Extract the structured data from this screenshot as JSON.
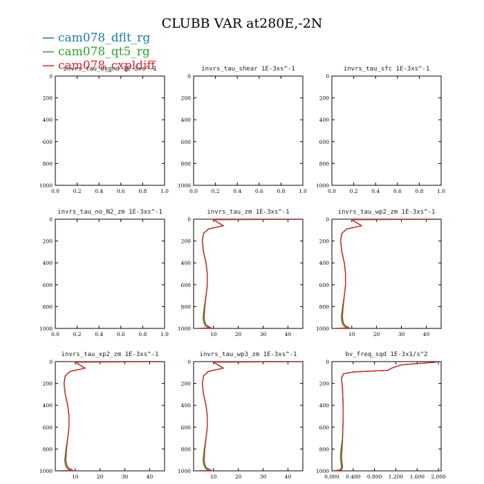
{
  "title": "CLUBB VAR at280E,-2N",
  "legend": [
    {
      "name": "cam078_dflt_rg",
      "color": "#1f77b4"
    },
    {
      "name": "cam078_qt5_rg",
      "color": "#2ca02c"
    },
    {
      "name": "cam078_cxpldiff",
      "color": "#d62728"
    }
  ],
  "chart_data": [
    {
      "type": "line",
      "title": "invrs_tau_bkgnd  1E-3xs^-1",
      "xlim": [
        0,
        1
      ],
      "ylim": [
        1000,
        0
      ],
      "xticks": [
        "0.0",
        "0.2",
        "0.4",
        "0.6",
        "0.8",
        "1.0"
      ],
      "yticks": [
        "0",
        "200",
        "400",
        "600",
        "800",
        "1000"
      ],
      "series": []
    },
    {
      "type": "line",
      "title": "invrs_tau_shear  1E-3xs^-1",
      "xlim": [
        0,
        1
      ],
      "ylim": [
        1000,
        0
      ],
      "xticks": [
        "0.0",
        "0.2",
        "0.4",
        "0.6",
        "0.8",
        "1.0"
      ],
      "yticks": [
        "0",
        "200",
        "400",
        "600",
        "800",
        "1000"
      ],
      "series": []
    },
    {
      "type": "line",
      "title": "invrs_tau_sfc  1E-3xs^-1",
      "xlim": [
        0,
        1
      ],
      "ylim": [
        1000,
        0
      ],
      "xticks": [
        "0.0",
        "0.2",
        "0.4",
        "0.6",
        "0.8",
        "1.0"
      ],
      "yticks": [
        "0",
        "200",
        "400",
        "600",
        "800",
        "1000"
      ],
      "series": []
    },
    {
      "type": "line",
      "title": "invrs_tau_no_N2_zm  1E-3xs^-1",
      "xlim": [
        0,
        1
      ],
      "ylim": [
        1000,
        0
      ],
      "xticks": [
        "0.0",
        "0.2",
        "0.4",
        "0.6",
        "0.8",
        "1.0"
      ],
      "yticks": [
        "0",
        "200",
        "400",
        "600",
        "800",
        "1000"
      ],
      "series": []
    },
    {
      "type": "line",
      "title": "invrs_tau_zm  1E-3xs^-1",
      "xlim": [
        2,
        46
      ],
      "ylim": [
        1000,
        0
      ],
      "xticks": [
        "10",
        "20",
        "30",
        "40"
      ],
      "yticks": [
        "0",
        "200",
        "400",
        "600",
        "800",
        "1000"
      ],
      "series": [
        {
          "x": [
            45,
            15,
            10,
            14,
            8,
            6,
            5.5,
            6,
            7,
            7.5,
            7.5,
            7,
            6.5,
            6.2,
            6.5,
            7,
            9,
            4
          ],
          "y": [
            0,
            3,
            5,
            60,
            90,
            130,
            200,
            300,
            400,
            500,
            600,
            700,
            800,
            900,
            940,
            970,
            995,
            1000
          ]
        },
        {
          "x": [
            45,
            15,
            10,
            14,
            8,
            6,
            5.5,
            6,
            7,
            7.5,
            7.5,
            7,
            6.3,
            5.8,
            6,
            6.5,
            8,
            4
          ],
          "y": [
            0,
            3,
            5,
            60,
            90,
            130,
            200,
            300,
            400,
            500,
            600,
            700,
            800,
            900,
            940,
            970,
            995,
            1000
          ]
        },
        {
          "x": [
            45,
            15,
            10,
            14,
            8,
            6,
            5.5,
            6,
            7,
            7.5,
            7.5,
            7,
            6.5,
            6.2,
            6.5,
            7,
            9,
            4
          ],
          "y": [
            0,
            3,
            5,
            60,
            90,
            130,
            200,
            300,
            400,
            500,
            600,
            700,
            800,
            900,
            940,
            970,
            995,
            1000
          ]
        }
      ]
    },
    {
      "type": "line",
      "title": "invrs_tau_wp2_zm  1E-3xs^-1",
      "xlim": [
        2,
        46
      ],
      "ylim": [
        1000,
        0
      ],
      "xticks": [
        "10",
        "20",
        "30",
        "40"
      ],
      "yticks": [
        "0",
        "200",
        "400",
        "600",
        "800",
        "1000"
      ],
      "series": [
        {
          "x": [
            45,
            15,
            10,
            14,
            8,
            6,
            5.5,
            6,
            7,
            7.5,
            7.5,
            7,
            6.5,
            6.2,
            6.5,
            7,
            9,
            4
          ],
          "y": [
            0,
            3,
            5,
            60,
            90,
            130,
            200,
            300,
            400,
            500,
            600,
            700,
            800,
            900,
            940,
            970,
            995,
            1000
          ]
        },
        {
          "x": [
            45,
            15,
            10,
            14,
            8,
            6,
            5.5,
            6,
            7,
            7.5,
            7.5,
            7,
            6.3,
            5.8,
            6,
            6.5,
            8,
            4
          ],
          "y": [
            0,
            3,
            5,
            60,
            90,
            130,
            200,
            300,
            400,
            500,
            600,
            700,
            800,
            900,
            940,
            970,
            995,
            1000
          ]
        },
        {
          "x": [
            45,
            15,
            10,
            14,
            8,
            6,
            5.5,
            6,
            7,
            7.5,
            7.5,
            7,
            6.5,
            6.2,
            6.5,
            7,
            9,
            4
          ],
          "y": [
            0,
            3,
            5,
            60,
            90,
            130,
            200,
            300,
            400,
            500,
            600,
            700,
            800,
            900,
            940,
            970,
            995,
            1000
          ]
        }
      ]
    },
    {
      "type": "line",
      "title": "invrs_tau_xp2_zm  1E-3xs^-1",
      "xlim": [
        2,
        46
      ],
      "ylim": [
        1000,
        0
      ],
      "xticks": [
        "10",
        "20",
        "30",
        "40"
      ],
      "yticks": [
        "0",
        "200",
        "400",
        "600",
        "800",
        "1000"
      ],
      "series": [
        {
          "x": [
            45,
            15,
            10,
            14,
            8,
            6,
            5.5,
            6,
            7,
            7.5,
            7.5,
            7,
            6.5,
            6.2,
            6.5,
            7,
            9,
            4
          ],
          "y": [
            0,
            3,
            5,
            60,
            90,
            130,
            200,
            300,
            400,
            500,
            600,
            700,
            800,
            900,
            940,
            970,
            995,
            1000
          ]
        },
        {
          "x": [
            45,
            15,
            10,
            14,
            8,
            6,
            5.5,
            6,
            7,
            7.5,
            7.5,
            7,
            6.3,
            5.8,
            6,
            6.5,
            8,
            4
          ],
          "y": [
            0,
            3,
            5,
            60,
            90,
            130,
            200,
            300,
            400,
            500,
            600,
            700,
            800,
            900,
            940,
            970,
            995,
            1000
          ]
        },
        {
          "x": [
            45,
            15,
            10,
            14,
            8,
            6,
            5.5,
            6,
            7,
            7.5,
            7.5,
            7,
            6.5,
            6.2,
            6.5,
            7,
            9,
            4
          ],
          "y": [
            0,
            3,
            5,
            60,
            90,
            130,
            200,
            300,
            400,
            500,
            600,
            700,
            800,
            900,
            940,
            970,
            995,
            1000
          ]
        }
      ]
    },
    {
      "type": "line",
      "title": "invrs_tau_wp3_zm  1E-3xs^-1",
      "xlim": [
        2,
        46
      ],
      "ylim": [
        1000,
        0
      ],
      "xticks": [
        "10",
        "20",
        "30",
        "40"
      ],
      "yticks": [
        "0",
        "200",
        "400",
        "600",
        "800",
        "1000"
      ],
      "series": [
        {
          "x": [
            45,
            15,
            10,
            14,
            8,
            6,
            5.5,
            6,
            7,
            7.5,
            7.5,
            7,
            6.5,
            6.2,
            6.5,
            7,
            9,
            4
          ],
          "y": [
            0,
            3,
            5,
            60,
            90,
            130,
            200,
            300,
            400,
            500,
            600,
            700,
            800,
            900,
            940,
            970,
            995,
            1000
          ]
        },
        {
          "x": [
            45,
            15,
            10,
            14,
            8,
            6,
            5.5,
            6,
            7,
            7.5,
            7.5,
            7,
            6.3,
            5.8,
            6,
            6.5,
            8,
            4
          ],
          "y": [
            0,
            3,
            5,
            60,
            90,
            130,
            200,
            300,
            400,
            500,
            600,
            700,
            800,
            900,
            940,
            970,
            995,
            1000
          ]
        },
        {
          "x": [
            45,
            15,
            10,
            14,
            8,
            6,
            5.5,
            6,
            7,
            7.5,
            7.5,
            7,
            6.5,
            6.2,
            6.5,
            7,
            9,
            4
          ],
          "y": [
            0,
            3,
            5,
            60,
            90,
            130,
            200,
            300,
            400,
            500,
            600,
            700,
            800,
            900,
            940,
            970,
            995,
            1000
          ]
        }
      ]
    },
    {
      "type": "line",
      "title": "bv_freq_sqd  1E-3x1/s^2",
      "xlim": [
        0,
        2.05
      ],
      "ylim": [
        1000,
        0
      ],
      "xticks": [
        "0.000",
        "0.400",
        "0.800",
        "1.200",
        "1.600",
        "2.000"
      ],
      "yticks": [
        "0",
        "200",
        "400",
        "600",
        "800",
        "1000"
      ],
      "series": [
        {
          "x": [
            2.0,
            1.95,
            1.3,
            1.12,
            1.05,
            0.4,
            0.22,
            0.18,
            0.2,
            0.21,
            0.21,
            0.2,
            0.19,
            0.18,
            0.19,
            0.2,
            0.18,
            0.05
          ],
          "y": [
            0,
            5,
            30,
            60,
            80,
            95,
            110,
            150,
            250,
            400,
            550,
            700,
            800,
            880,
            930,
            960,
            990,
            1000
          ]
        },
        {
          "x": [
            2.0,
            1.95,
            1.3,
            1.12,
            1.05,
            0.4,
            0.22,
            0.18,
            0.2,
            0.21,
            0.21,
            0.2,
            0.17,
            0.16,
            0.17,
            0.18,
            0.16,
            0.05
          ],
          "y": [
            0,
            5,
            30,
            60,
            80,
            95,
            110,
            150,
            250,
            400,
            550,
            700,
            800,
            880,
            930,
            960,
            990,
            1000
          ]
        },
        {
          "x": [
            2.0,
            1.95,
            1.3,
            1.12,
            1.05,
            0.4,
            0.22,
            0.18,
            0.2,
            0.21,
            0.21,
            0.2,
            0.19,
            0.18,
            0.19,
            0.2,
            0.18,
            0.05
          ],
          "y": [
            0,
            5,
            30,
            60,
            80,
            95,
            110,
            150,
            250,
            400,
            550,
            700,
            800,
            880,
            930,
            960,
            990,
            1000
          ]
        }
      ]
    }
  ]
}
